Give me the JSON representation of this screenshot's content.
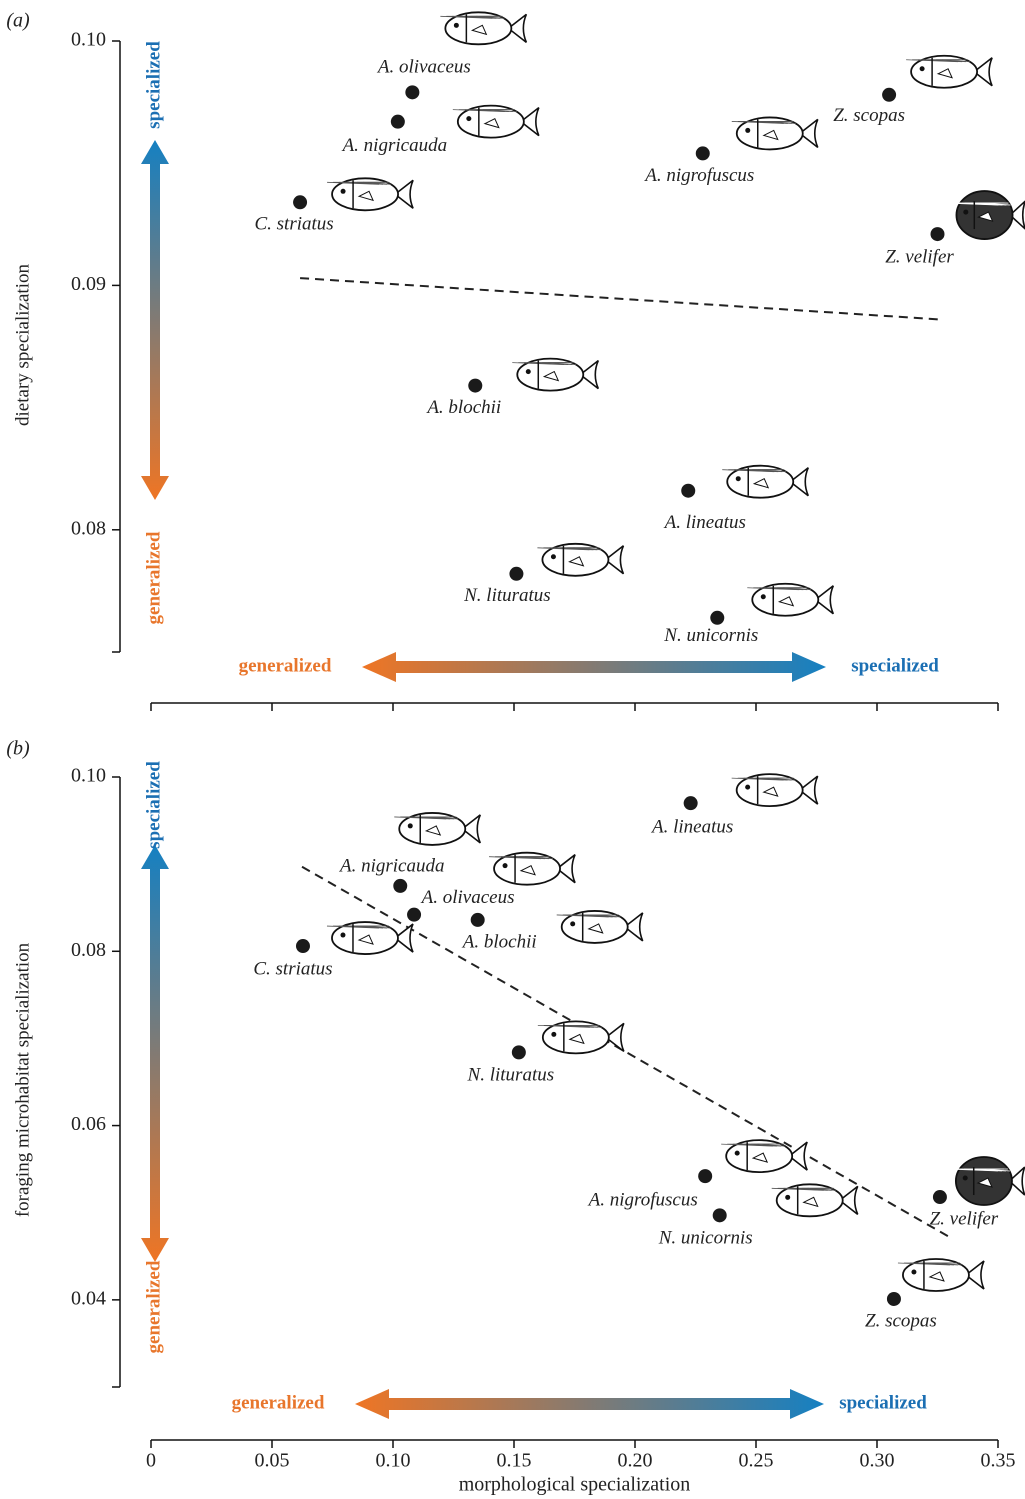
{
  "chart_data": [
    {
      "type": "scatter",
      "panel_label": "(a)",
      "ylabel": "dietary specialization",
      "labels": [
        "A. olivaceus",
        "A. nigricauda",
        "C. striatus",
        "A. nigrofuscus",
        "Z. scopas",
        "Z. velifer",
        "A. blochii",
        "A. lineatus",
        "N. lituratus",
        "N. unicornis"
      ],
      "x": [
        0.108,
        0.102,
        0.0616,
        0.228,
        0.305,
        0.325,
        0.134,
        0.222,
        0.151,
        0.234
      ],
      "values": [
        0.0979,
        0.0967,
        0.0934,
        0.0954,
        0.0978,
        0.0921,
        0.0859,
        0.0816,
        0.0782,
        0.0764
      ],
      "color": "#1a1a1a",
      "trendline": {
        "x": [
          0.0616,
          0.327
        ],
        "y": [
          0.0903,
          0.0886
        ]
      },
      "xlim": [
        0,
        0.35
      ],
      "xticks": [
        0,
        0.05,
        0.1,
        0.15,
        0.2,
        0.25,
        0.3,
        0.35
      ],
      "ylim": [
        0.075,
        0.1
      ],
      "yticks": [
        {
          "value": 0.08,
          "label": "0.08"
        },
        {
          "value": 0.09,
          "label": "0.09"
        },
        {
          "value": 0.1,
          "label": "0.10"
        }
      ],
      "y_arrow": {
        "top": "specialized",
        "bottom": "generalized"
      },
      "x_arrow": {
        "left": "generalized",
        "right": "specialized"
      }
    },
    {
      "type": "scatter",
      "panel_label": "(b)",
      "ylabel": "foraging microhabitat specialization",
      "xlabel": "morphological specialization",
      "labels": [
        "A. lineatus",
        "A. nigricauda",
        "A. olivaceus",
        "A. blochii",
        "C. striatus",
        "N. lituratus",
        "A. nigrofuscus",
        "N. unicornis",
        "Z. velifer",
        "Z. scopas"
      ],
      "x": [
        0.223,
        0.103,
        0.1087,
        0.135,
        0.0628,
        0.152,
        0.229,
        0.235,
        0.326,
        0.307
      ],
      "values": [
        0.097,
        0.0875,
        0.0842,
        0.0836,
        0.0806,
        0.0684,
        0.0542,
        0.0497,
        0.0518,
        0.0401
      ],
      "color": "#1a1a1a",
      "trendline": {
        "x": [
          0.0624,
          0.33
        ],
        "y": [
          0.0897,
          0.0472
        ]
      },
      "xlim": [
        0,
        0.35
      ],
      "xticks": [
        0,
        0.05,
        {
          "value": 0.1,
          "label": "0.10"
        },
        0.15,
        {
          "value": 0.2,
          "label": "0.20"
        },
        0.25,
        {
          "value": 0.3,
          "label": "0.30"
        },
        0.35
      ],
      "ylim": [
        0.03,
        0.1
      ],
      "yticks": [
        {
          "value": 0.04,
          "label": "0.04"
        },
        {
          "value": 0.06,
          "label": "0.06"
        },
        {
          "value": 0.08,
          "label": "0.08"
        },
        {
          "value": 0.1,
          "label": "0.10"
        }
      ],
      "y_arrow": {
        "top": "specialized",
        "bottom": "generalized"
      },
      "x_arrow": {
        "left": "generalized",
        "right": "specialized"
      }
    }
  ]
}
